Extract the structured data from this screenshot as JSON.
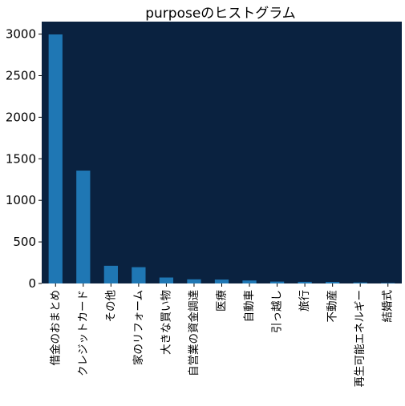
{
  "chart_data": {
    "type": "bar",
    "title": "purposeのヒストグラム",
    "xlabel": "",
    "ylabel": "",
    "categories": [
      "借金のおまとめ",
      "クレジットカード",
      "その他",
      "家のリフォーム",
      "大きな買い物",
      "自営業の資金調達",
      "医療",
      "自動車",
      "引っ越し",
      "旅行",
      "不動産",
      "再生可能エネルギー",
      "結婚式"
    ],
    "values": [
      2996,
      1358,
      213,
      196,
      72,
      50,
      47,
      36,
      23,
      20,
      19,
      12,
      6
    ],
    "ylim": [
      0,
      3150
    ],
    "yticks": [
      0,
      500,
      1000,
      1500,
      2000,
      2500,
      3000
    ],
    "grid": false,
    "legend": "none",
    "colors": {
      "plot_background": "#0a2240",
      "bar": "#1f77b4",
      "text": "#000000",
      "axis": "#000000"
    }
  }
}
